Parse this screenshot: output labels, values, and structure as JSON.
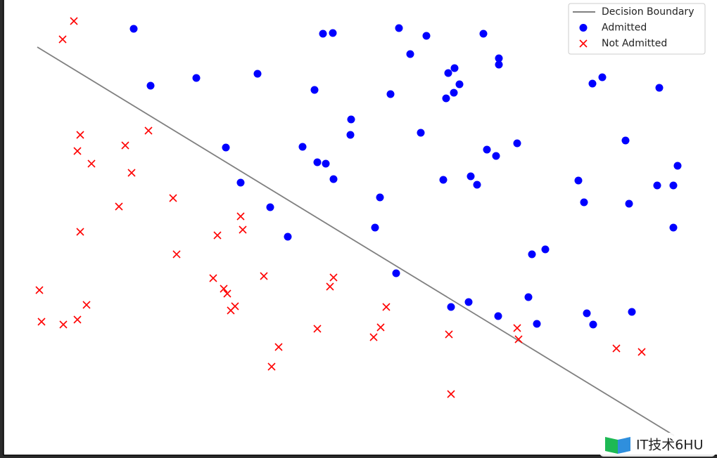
{
  "chart_data": {
    "type": "scatter",
    "xlim": [
      0,
      101
    ],
    "ylim": [
      0,
      64.3
    ],
    "grid": false,
    "legend": "upper right",
    "series": [
      {
        "name": "Decision Boundary",
        "type": "line",
        "color": "#808080",
        "x": [
          4.8,
          95.3
        ],
        "values": [
          58.1,
          2.8
        ]
      },
      {
        "name": "Admitted",
        "type": "scatter",
        "marker": "o",
        "color": "#0000ff",
        "x": [
          18.5,
          20.9,
          27.4,
          36.1,
          31.6,
          33.7,
          37.9,
          40.4,
          44.2,
          45.4,
          46.8,
          42.5,
          44.6,
          45.8,
          46.9,
          49.4,
          49.3,
          55.0,
          56.2,
          57.8,
          60.1,
          59.3,
          53.5,
          52.8,
          55.8,
          63.2,
          64.1,
          64.8,
          64.0,
          62.9,
          68.2,
          70.4,
          70.4,
          73.0,
          68.7,
          70.0,
          66.4,
          67.3,
          62.5,
          63.6,
          66.1,
          70.3,
          74.6,
          75.8,
          75.1,
          77.0,
          81.7,
          82.5,
          83.7,
          85.1,
          93.2,
          88.4,
          88.9,
          92.9,
          95.2,
          95.8,
          95.2,
          82.9,
          83.8,
          89.3
        ],
        "values": [
          60.7,
          52.6,
          53.7,
          54.3,
          43.8,
          38.8,
          35.3,
          31.1,
          52.0,
          60.0,
          60.1,
          43.9,
          41.7,
          41.5,
          39.3,
          47.8,
          45.6,
          51.4,
          60.8,
          57.1,
          59.7,
          45.9,
          36.7,
          32.4,
          25.9,
          54.4,
          55.1,
          52.8,
          51.6,
          50.8,
          60.0,
          56.5,
          55.6,
          44.4,
          43.5,
          42.6,
          39.7,
          38.5,
          39.2,
          21.1,
          21.8,
          19.8,
          22.5,
          18.7,
          28.6,
          29.3,
          39.1,
          36.0,
          52.9,
          53.8,
          52.3,
          44.8,
          35.8,
          38.4,
          38.4,
          41.2,
          32.4,
          20.2,
          18.6,
          20.4
        ]
      },
      {
        "name": "Not Admitted",
        "type": "scatter",
        "marker": "x",
        "color": "#ff0000",
        "x": [
          10.0,
          8.4,
          10.9,
          10.5,
          12.5,
          17.3,
          20.6,
          18.2,
          16.4,
          24.1,
          10.9,
          24.6,
          30.4,
          33.7,
          34.0,
          29.8,
          31.3,
          31.8,
          32.9,
          32.3,
          37.0,
          39.1,
          38.1,
          44.6,
          46.4,
          46.9,
          54.4,
          53.6,
          52.6,
          63.3,
          63.6,
          73.0,
          73.2,
          87.1,
          90.7,
          5.1,
          5.4,
          8.5,
          10.5,
          11.8
        ],
        "values": [
          61.8,
          59.2,
          45.6,
          43.3,
          41.5,
          44.1,
          46.2,
          40.2,
          35.4,
          36.6,
          31.8,
          28.6,
          31.3,
          34.0,
          32.1,
          25.2,
          23.7,
          23.0,
          21.2,
          20.6,
          25.5,
          15.4,
          12.6,
          18.0,
          24.0,
          25.3,
          21.1,
          18.2,
          16.8,
          17.2,
          8.7,
          18.1,
          16.5,
          15.2,
          14.7,
          23.5,
          19.0,
          18.6,
          19.3,
          21.4
        ]
      }
    ]
  },
  "watermark": "IT技术6HU"
}
